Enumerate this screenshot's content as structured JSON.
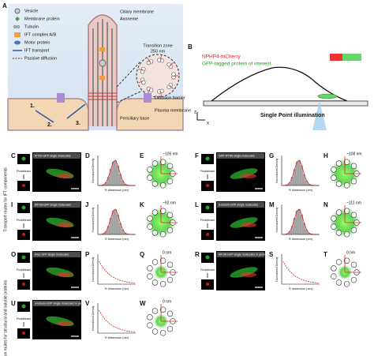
{
  "panel_a": {
    "letter": "A",
    "legend": [
      "Vesicle",
      "Membrane protein",
      "Tubulin",
      "IFT complex A/B",
      "Motor protein",
      "IFT transport",
      "Passive diffusion"
    ],
    "ciliary_membrane": "Ciliary membrane",
    "axoneme": "Axoneme",
    "transition_zone": "Transition zone",
    "tz_size": "250 nm",
    "diffusion_barrier": "Diffusion barrier",
    "plasma_membrane": "Plasma membrane",
    "periciliary_base": "Periciliary base",
    "steps": [
      "1.",
      "2.",
      "3."
    ]
  },
  "panel_b": {
    "letter": "B",
    "nphp4": "NPHP4-mCherry",
    "gfp": "GFP-tagged protein of interest",
    "illumination": "Single Point illumination",
    "axis_z": "z",
    "axis_x": "x"
  },
  "row_groups": [
    "Transport routes for IFT components",
    "Diffusion routes for structural and soluble proteins"
  ],
  "common": {
    "photobleach": "Photobleach",
    "y_axis": "Normalized Density",
    "x_axis": "R dimension (nm)"
  },
  "panels": [
    {
      "letters": [
        "C",
        "D",
        "E"
      ],
      "caption": "IFT20-GFP single molecules",
      "distance": "~105 nm"
    },
    {
      "letters": [
        "F",
        "G",
        "H"
      ],
      "caption": "GFP-IFT88 single molecules",
      "distance": "~108 nm"
    },
    {
      "letters": [
        "I",
        "J",
        "K"
      ],
      "caption": "KIF3A-GFP single molecules",
      "distance": "~92 nm"
    },
    {
      "letters": [
        "L",
        "M",
        "N"
      ],
      "caption": "α-tubulin-GFP single molecules",
      "distance": "~111 nm"
    },
    {
      "letters": [
        "O",
        "P",
        "Q"
      ],
      "caption": "Free GFP single molecules",
      "distance": "0 nm"
    },
    {
      "letters": [
        "R",
        "S",
        "T"
      ],
      "caption": "KIF3A-GFP single molecules in permeabilized cells",
      "distance": "0 nm"
    },
    {
      "letters": [
        "U",
        "V",
        "W"
      ],
      "caption": "α-tubulin-GFP single molecules in permeabilized cells",
      "distance": "0 nm"
    }
  ]
}
